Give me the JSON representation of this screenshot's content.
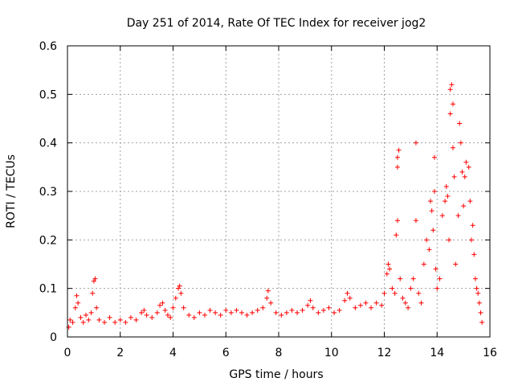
{
  "chart_data": {
    "type": "scatter",
    "title": "Day 251 of 2014, Rate Of TEC Index for receiver jog2",
    "xlabel": "GPS time / hours",
    "ylabel": "ROTI / TECUs",
    "xlim": [
      0,
      16
    ],
    "ylim": [
      0,
      0.6
    ],
    "xticks": [
      0,
      2,
      4,
      6,
      8,
      10,
      12,
      14,
      16
    ],
    "xtick_labels": [
      "0",
      "2",
      "4",
      "6",
      "8",
      "10",
      "12",
      "14",
      "16"
    ],
    "yticks": [
      0,
      0.1,
      0.2,
      0.3,
      0.4,
      0.5,
      0.6
    ],
    "ytick_labels": [
      "0",
      "0.1",
      "0.2",
      "0.3",
      "0.4",
      "0.5",
      "0.6"
    ],
    "grid": true,
    "marker": "+",
    "series": [
      {
        "name": "jog2",
        "color": "#ff0000",
        "description": "ROTI baseline ~0.02-0.05 TECU from 0-12 h, with spikes near 0.3 h, 1.0 h, 4.2 h, 7.6 h, 9.2 h, 10.6 h; strong enhancement 12-15.7 h up to ~0.52",
        "points": [
          [
            0.05,
            0.02
          ],
          [
            0.1,
            0.035
          ],
          [
            0.2,
            0.03
          ],
          [
            0.3,
            0.06
          ],
          [
            0.35,
            0.085
          ],
          [
            0.4,
            0.07
          ],
          [
            0.5,
            0.04
          ],
          [
            0.6,
            0.03
          ],
          [
            0.7,
            0.045
          ],
          [
            0.8,
            0.035
          ],
          [
            0.9,
            0.05
          ],
          [
            0.95,
            0.09
          ],
          [
            1.0,
            0.115
          ],
          [
            1.05,
            0.12
          ],
          [
            1.1,
            0.06
          ],
          [
            1.2,
            0.035
          ],
          [
            1.4,
            0.03
          ],
          [
            1.6,
            0.04
          ],
          [
            1.8,
            0.03
          ],
          [
            2.0,
            0.035
          ],
          [
            2.2,
            0.03
          ],
          [
            2.4,
            0.04
          ],
          [
            2.6,
            0.035
          ],
          [
            2.8,
            0.05
          ],
          [
            2.9,
            0.055
          ],
          [
            3.0,
            0.045
          ],
          [
            3.2,
            0.04
          ],
          [
            3.4,
            0.05
          ],
          [
            3.5,
            0.065
          ],
          [
            3.6,
            0.07
          ],
          [
            3.7,
            0.055
          ],
          [
            3.8,
            0.045
          ],
          [
            3.9,
            0.04
          ],
          [
            4.0,
            0.06
          ],
          [
            4.1,
            0.08
          ],
          [
            4.2,
            0.1
          ],
          [
            4.25,
            0.105
          ],
          [
            4.3,
            0.09
          ],
          [
            4.4,
            0.06
          ],
          [
            4.6,
            0.045
          ],
          [
            4.8,
            0.04
          ],
          [
            5.0,
            0.05
          ],
          [
            5.2,
            0.045
          ],
          [
            5.4,
            0.055
          ],
          [
            5.6,
            0.05
          ],
          [
            5.8,
            0.045
          ],
          [
            6.0,
            0.055
          ],
          [
            6.2,
            0.05
          ],
          [
            6.4,
            0.055
          ],
          [
            6.6,
            0.05
          ],
          [
            6.8,
            0.045
          ],
          [
            7.0,
            0.05
          ],
          [
            7.2,
            0.055
          ],
          [
            7.4,
            0.06
          ],
          [
            7.55,
            0.08
          ],
          [
            7.6,
            0.095
          ],
          [
            7.7,
            0.07
          ],
          [
            7.9,
            0.05
          ],
          [
            8.1,
            0.045
          ],
          [
            8.3,
            0.05
          ],
          [
            8.5,
            0.055
          ],
          [
            8.7,
            0.05
          ],
          [
            8.9,
            0.055
          ],
          [
            9.1,
            0.065
          ],
          [
            9.2,
            0.075
          ],
          [
            9.3,
            0.06
          ],
          [
            9.5,
            0.05
          ],
          [
            9.7,
            0.055
          ],
          [
            9.9,
            0.06
          ],
          [
            10.1,
            0.05
          ],
          [
            10.3,
            0.055
          ],
          [
            10.5,
            0.075
          ],
          [
            10.6,
            0.09
          ],
          [
            10.7,
            0.08
          ],
          [
            10.9,
            0.06
          ],
          [
            11.1,
            0.065
          ],
          [
            11.3,
            0.07
          ],
          [
            11.5,
            0.06
          ],
          [
            11.7,
            0.07
          ],
          [
            11.9,
            0.065
          ],
          [
            12.0,
            0.09
          ],
          [
            12.1,
            0.13
          ],
          [
            12.15,
            0.15
          ],
          [
            12.2,
            0.14
          ],
          [
            12.3,
            0.1
          ],
          [
            12.4,
            0.09
          ],
          [
            12.45,
            0.21
          ],
          [
            12.5,
            0.24
          ],
          [
            12.5,
            0.35
          ],
          [
            12.5,
            0.37
          ],
          [
            12.55,
            0.385
          ],
          [
            12.6,
            0.12
          ],
          [
            12.7,
            0.08
          ],
          [
            12.8,
            0.07
          ],
          [
            12.9,
            0.06
          ],
          [
            13.0,
            0.1
          ],
          [
            13.1,
            0.12
          ],
          [
            13.2,
            0.24
          ],
          [
            13.2,
            0.4
          ],
          [
            13.3,
            0.09
          ],
          [
            13.4,
            0.07
          ],
          [
            13.5,
            0.15
          ],
          [
            13.6,
            0.2
          ],
          [
            13.7,
            0.18
          ],
          [
            13.75,
            0.28
          ],
          [
            13.8,
            0.26
          ],
          [
            13.85,
            0.22
          ],
          [
            13.9,
            0.37
          ],
          [
            13.9,
            0.3
          ],
          [
            13.95,
            0.14
          ],
          [
            14.0,
            0.1
          ],
          [
            14.1,
            0.12
          ],
          [
            14.2,
            0.25
          ],
          [
            14.3,
            0.28
          ],
          [
            14.35,
            0.31
          ],
          [
            14.4,
            0.29
          ],
          [
            14.45,
            0.2
          ],
          [
            14.5,
            0.46
          ],
          [
            14.5,
            0.51
          ],
          [
            14.55,
            0.52
          ],
          [
            14.6,
            0.48
          ],
          [
            14.6,
            0.39
          ],
          [
            14.65,
            0.33
          ],
          [
            14.7,
            0.15
          ],
          [
            14.8,
            0.25
          ],
          [
            14.85,
            0.44
          ],
          [
            14.9,
            0.4
          ],
          [
            14.95,
            0.34
          ],
          [
            15.0,
            0.27
          ],
          [
            15.05,
            0.33
          ],
          [
            15.1,
            0.36
          ],
          [
            15.2,
            0.35
          ],
          [
            15.25,
            0.28
          ],
          [
            15.3,
            0.2
          ],
          [
            15.35,
            0.23
          ],
          [
            15.4,
            0.17
          ],
          [
            15.45,
            0.12
          ],
          [
            15.5,
            0.1
          ],
          [
            15.55,
            0.09
          ],
          [
            15.6,
            0.07
          ],
          [
            15.65,
            0.05
          ],
          [
            15.7,
            0.03
          ]
        ]
      }
    ]
  }
}
